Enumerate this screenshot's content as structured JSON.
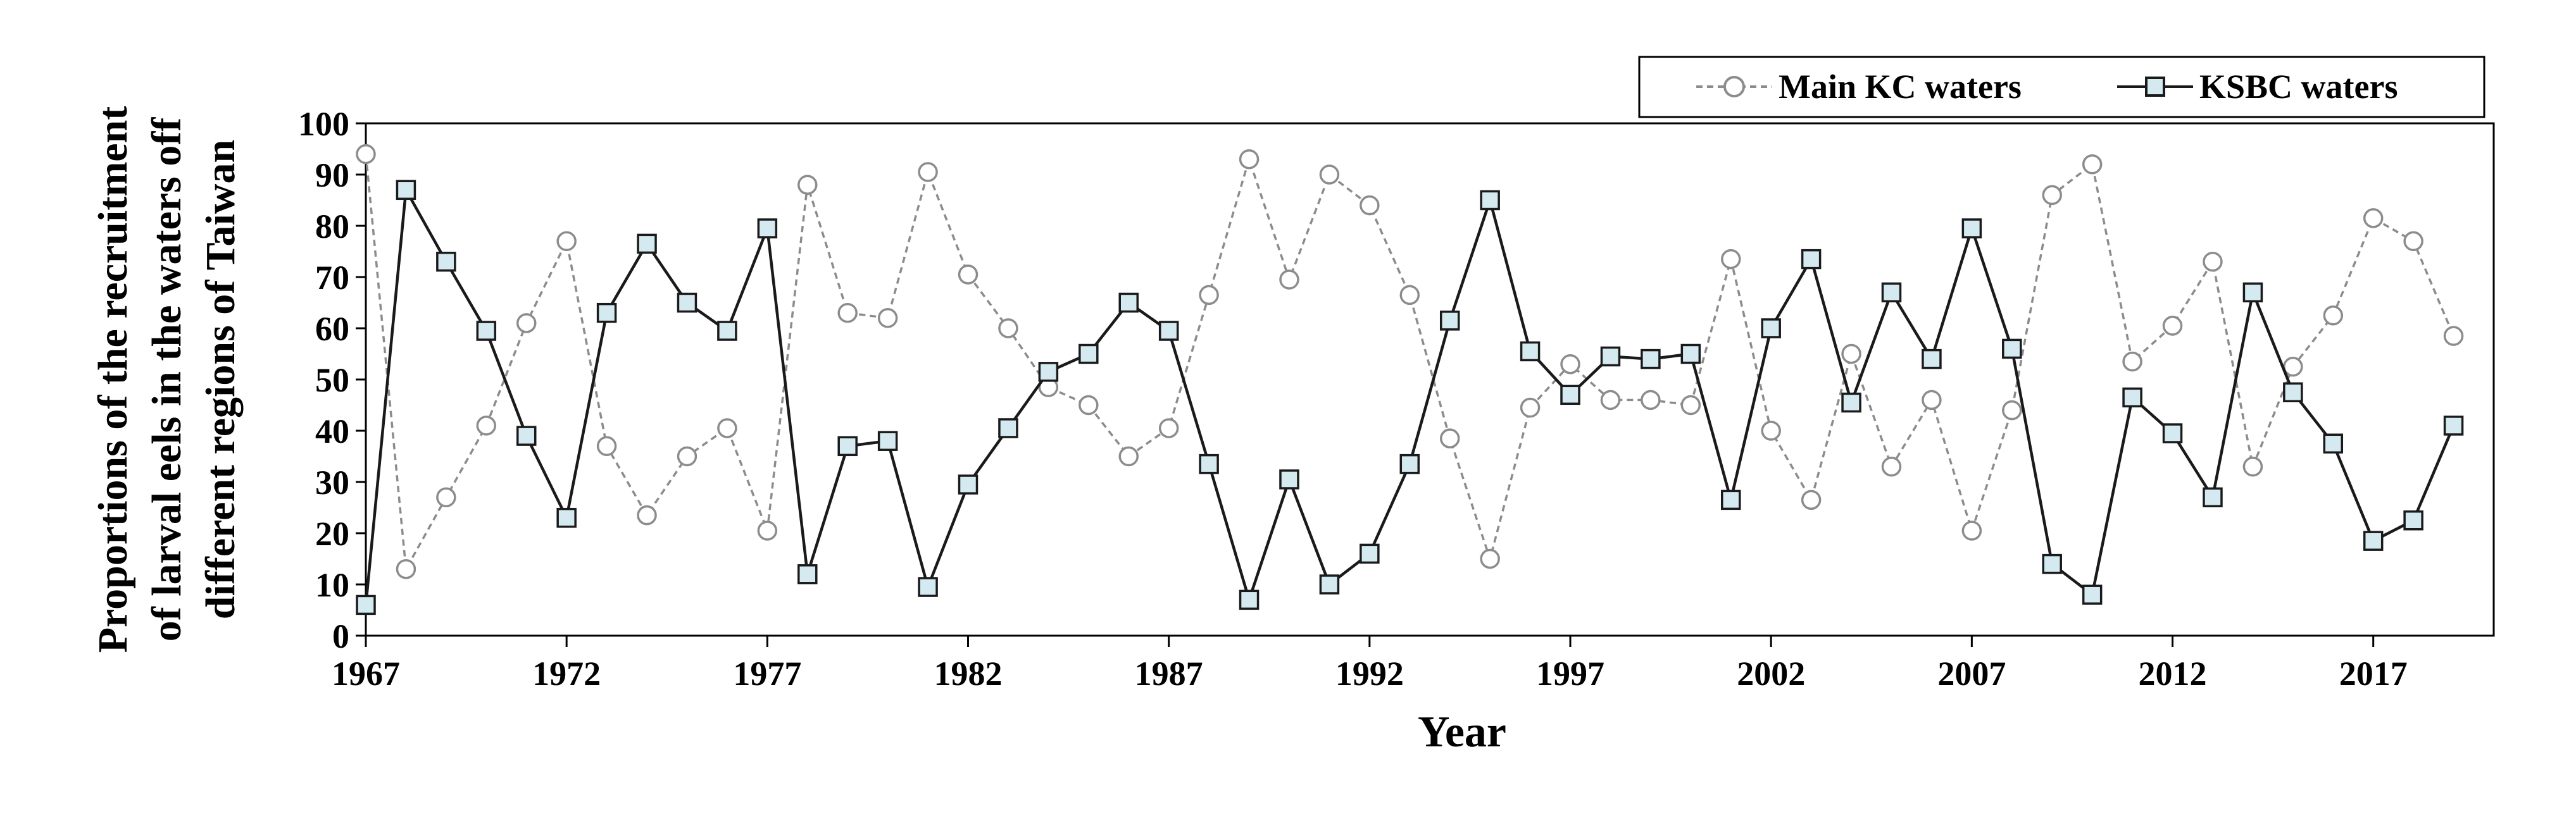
{
  "chart_data": {
    "type": "line",
    "xlabel": "Year",
    "ylabel_lines": [
      "Proportions of the recruitment",
      "of larval eels in the waters off",
      "different regions of Taiwan"
    ],
    "xlim": [
      1967,
      2020
    ],
    "ylim": [
      0,
      100
    ],
    "x_ticks": [
      1967,
      1972,
      1977,
      1982,
      1987,
      1992,
      1997,
      2002,
      2007,
      2012,
      2017
    ],
    "y_ticks": [
      0,
      10,
      20,
      30,
      40,
      50,
      60,
      70,
      80,
      90,
      100
    ],
    "grid": false,
    "legend_position": "top-right",
    "x": [
      1967,
      1968,
      1969,
      1970,
      1971,
      1972,
      1973,
      1974,
      1975,
      1976,
      1977,
      1978,
      1979,
      1980,
      1981,
      1982,
      1983,
      1984,
      1985,
      1986,
      1987,
      1988,
      1989,
      1990,
      1991,
      1992,
      1993,
      1994,
      1995,
      1996,
      1997,
      1998,
      1999,
      2000,
      2001,
      2002,
      2003,
      2004,
      2005,
      2006,
      2007,
      2008,
      2009,
      2010,
      2011,
      2012,
      2013,
      2014,
      2015,
      2016,
      2017,
      2018,
      2019
    ],
    "series": [
      {
        "name": "Main KC waters",
        "marker": "circle",
        "line_style": "dashed",
        "color": "#8c8c8c",
        "marker_fill": "#ffffff",
        "values": [
          94,
          13,
          27,
          41,
          61,
          77,
          37,
          23.5,
          35,
          40.5,
          20.5,
          88,
          63,
          62,
          90.5,
          70.5,
          60,
          48.5,
          45,
          35,
          40.5,
          66.5,
          93,
          69.5,
          90,
          84,
          66.5,
          38.5,
          15,
          44.5,
          53,
          46,
          46,
          45,
          73.5,
          40,
          26.5,
          55,
          33,
          46,
          20.5,
          44,
          86,
          92,
          53.5,
          60.5,
          73,
          33,
          52.5,
          62.5,
          81.5,
          77,
          58.5
        ]
      },
      {
        "name": "KSBC waters",
        "marker": "square",
        "line_style": "solid",
        "color": "#1a1a1a",
        "marker_fill": "#d4eaf0",
        "values": [
          6,
          87,
          73,
          59.5,
          39,
          23,
          63,
          76.5,
          65,
          59.5,
          79.5,
          12,
          37,
          38,
          9.5,
          29.5,
          40.5,
          51.5,
          55,
          65,
          59.5,
          33.5,
          7,
          30.5,
          10,
          16,
          33.5,
          61.5,
          85,
          55.5,
          47,
          54.5,
          54,
          55,
          26.5,
          60,
          73.5,
          45.5,
          67,
          54,
          79.5,
          56,
          14,
          8,
          46.5,
          39.5,
          27,
          67,
          47.5,
          37.5,
          18.5,
          22.5,
          41
        ]
      }
    ]
  }
}
